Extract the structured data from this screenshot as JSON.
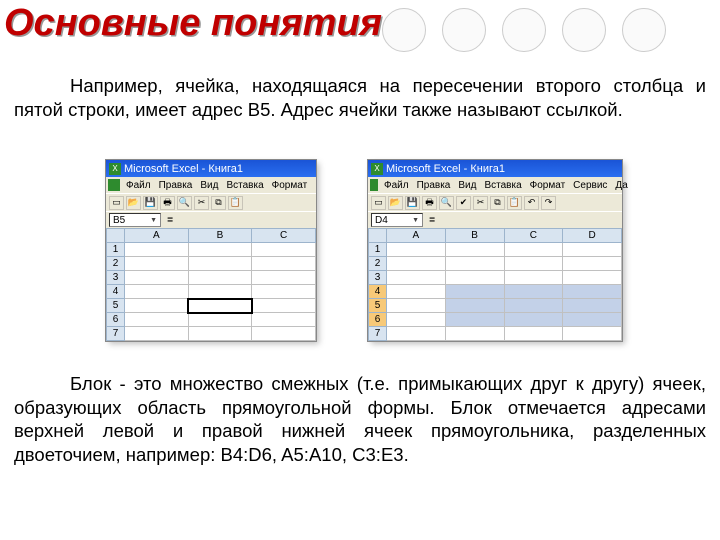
{
  "title": "Основные понятия",
  "circle_count": 5,
  "paragraph1": "Например, ячейка, находящаяся на пересечении второго столбца и пятой строки, имеет адрес В5. Адрес ячейки также называют ссылкой.",
  "paragraph2": "Блок - это множество смежных (т.е. примыкающих друг к другу) ячеек, образующих область прямоугольной формы. Блок отмечается адресами верхней левой и правой нижней ячеек прямоугольника, разделенных двоеточием, например: B4:D6, A5:A10, C3:E3.",
  "excel1": {
    "title": "Microsoft Excel - Книга1",
    "menu": [
      "Файл",
      "Правка",
      "Вид",
      "Вставка",
      "Формат"
    ],
    "namebox": "B5",
    "cols": [
      "A",
      "B",
      "C"
    ],
    "rows": [
      "1",
      "2",
      "3",
      "4",
      "5",
      "6",
      "7"
    ],
    "selected_cell": {
      "row": 5,
      "col": 2
    }
  },
  "excel2": {
    "title": "Microsoft Excel - Книга1",
    "menu": [
      "Файл",
      "Правка",
      "Вид",
      "Вставка",
      "Формат",
      "Сервис",
      "Дa"
    ],
    "namebox": "D4",
    "cols": [
      "A",
      "B",
      "C",
      "D"
    ],
    "rows": [
      "1",
      "2",
      "3",
      "4",
      "5",
      "6",
      "7"
    ],
    "range": {
      "r1": 4,
      "c1": 2,
      "r2": 6,
      "c2": 4
    }
  },
  "colors": {
    "title": "#c00000",
    "titlebar": "#1a54d6",
    "header_cell": "#d8e4f0",
    "range_sel": "#c3d1e8",
    "active_row": "#f7c978"
  }
}
